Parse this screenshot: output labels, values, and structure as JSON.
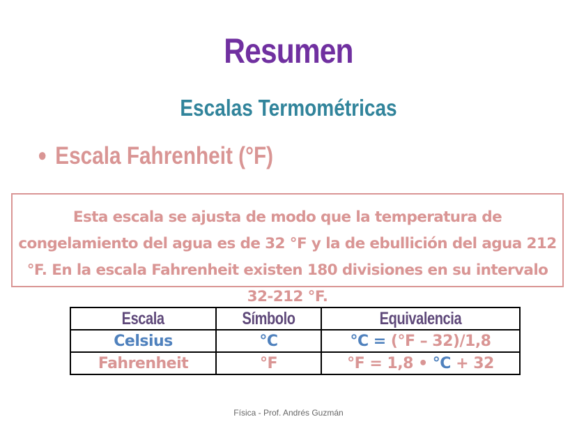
{
  "title": "Resumen",
  "subtitle": "Escalas Termométricas",
  "bullet": "Escala Fahrenheit  (°F)",
  "description": "Esta escala se ajusta de modo que la temperatura de congelamiento del agua es de 32 °F y la de ebullición del agua 212 °F. En la escala Fahrenheit existen 180 divisiones en su intervalo 32-212 °F.",
  "table": {
    "headers": [
      "Escala",
      "Símbolo",
      "Equivalencia"
    ],
    "rows": [
      {
        "escala": "Celsius",
        "simbolo": "°C",
        "eq_a": "°C = ",
        "eq_b": "(°F – 32)/1,8"
      },
      {
        "escala": "Fahrenheit",
        "simbolo": "°F",
        "eq_a": "°F = 1,8 • ",
        "eq_b": "°C",
        "eq_c": " + 32"
      }
    ]
  },
  "footer": "Física - Prof. Andrés Guzmán",
  "colors": {
    "title": "#7030a0",
    "subtitle": "#31849b",
    "pink": "#d99594",
    "blue": "#4f81bd",
    "header": "#5f497a"
  }
}
